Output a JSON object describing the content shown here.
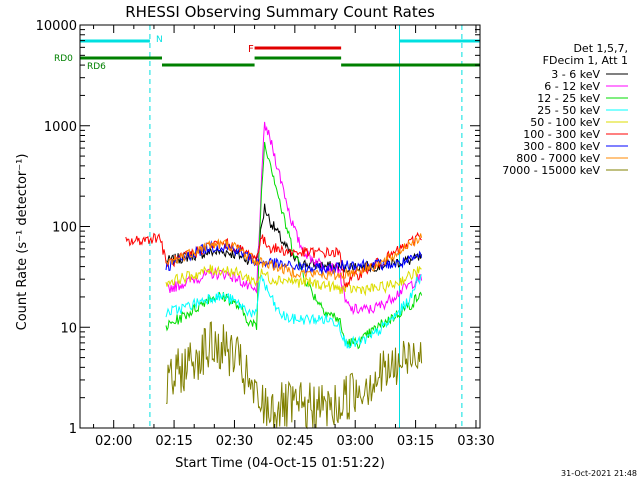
{
  "chart_data": {
    "type": "line",
    "title": "RHESSI Observing Summary Count Rates",
    "xlabel": "Start Time (04-Oct-15 01:51:22)",
    "ylabel": "Count Rate (s⁻¹ detector⁻¹)",
    "y_scale": "log",
    "ylim": [
      1,
      10000
    ],
    "xlim_minutes_after_0200": [
      -8.37,
      91.0
    ],
    "y_ticks": [
      1,
      10,
      100,
      1000,
      10000
    ],
    "y_tick_labels": [
      "1",
      "10",
      "100",
      "1000",
      "10000"
    ],
    "x_ticks": [
      "02:00",
      "02:15",
      "02:30",
      "02:45",
      "03:00",
      "03:15",
      "03:30"
    ],
    "x_tick_minutes": [
      0,
      15,
      30,
      45,
      60,
      75,
      90
    ],
    "grid": false,
    "legend_placement": "right",
    "legend_header": [
      "Det 1,5,7,",
      "FDecim 1, Att 1"
    ],
    "timestamp": "31-Oct-2021 21:48",
    "status_flags": {
      "night": {
        "label": "N",
        "color": "#00e0e0",
        "intervals": [
          [
            -8.37,
            9.0
          ],
          [
            71.0,
            91.0
          ]
        ]
      },
      "flare": {
        "label": "F",
        "color": "#e00000",
        "intervals": [
          [
            35.0,
            56.5
          ]
        ]
      },
      "rd0": {
        "label": "RD0",
        "color": "#008000",
        "intervals": [
          [
            -8.37,
            12.0
          ],
          [
            35.0,
            56.5
          ]
        ]
      },
      "rd6": {
        "label": "RD6",
        "color": "#008000",
        "intervals": [
          [
            12.0,
            35.0
          ],
          [
            56.5,
            91.0
          ]
        ]
      }
    },
    "boundaries": {
      "solid_cyan_minutes": [
        -8.37,
        71.0
      ],
      "dashed_cyan_minutes": [
        9.0,
        86.5
      ]
    },
    "x_minutes": [
      0.5,
      3,
      6,
      9,
      11.5,
      13,
      16,
      20,
      24,
      28,
      31,
      34,
      35.5,
      36.5,
      37.5,
      39,
      40.5,
      42,
      44,
      46,
      48,
      50,
      53,
      56,
      57.5,
      59,
      61,
      64,
      67,
      70,
      72,
      74,
      75.5,
      76.5
    ],
    "series": [
      {
        "name": "3 - 6 keV",
        "color": "#000000",
        "values": [
          null,
          null,
          null,
          null,
          null,
          45,
          48,
          52,
          56,
          56,
          52,
          46,
          45,
          85,
          155,
          110,
          90,
          70,
          52,
          44,
          42,
          42,
          40,
          40,
          38,
          40,
          40,
          40,
          42,
          44,
          45,
          46,
          48,
          48
        ]
      },
      {
        "name": "6 - 12 keV",
        "color": "#ff00ff",
        "values": [
          null,
          null,
          null,
          null,
          null,
          24,
          26,
          30,
          34,
          34,
          30,
          24,
          22,
          180,
          1050,
          700,
          420,
          250,
          120,
          70,
          52,
          46,
          40,
          38,
          18,
          15,
          15,
          15,
          17,
          21,
          24,
          27,
          30,
          30
        ]
      },
      {
        "name": "12 - 25 keV",
        "color": "#00dd00",
        "values": [
          null,
          null,
          null,
          null,
          null,
          10,
          12,
          15,
          20,
          20,
          16,
          11,
          10,
          150,
          680,
          420,
          240,
          130,
          70,
          42,
          28,
          20,
          14,
          12,
          7,
          7,
          7,
          9,
          11,
          13,
          15,
          17,
          20,
          20
        ]
      },
      {
        "name": "25 - 50 keV",
        "color": "#00ffff",
        "values": [
          null,
          null,
          null,
          null,
          null,
          14,
          15,
          17,
          20,
          20,
          17,
          14,
          13,
          35,
          26,
          20,
          15,
          13,
          12,
          12,
          12,
          12,
          12,
          11,
          7,
          7,
          7,
          8,
          10,
          13,
          16,
          20,
          32,
          30
        ]
      },
      {
        "name": "50 - 100 keV",
        "color": "#dddd00",
        "values": [
          null,
          null,
          null,
          null,
          null,
          28,
          30,
          33,
          37,
          37,
          34,
          30,
          28,
          34,
          34,
          30,
          30,
          30,
          29,
          28,
          28,
          27,
          26,
          24,
          24,
          24,
          24,
          24,
          25,
          27,
          30,
          33,
          36,
          36
        ]
      },
      {
        "name": "100 - 300 keV",
        "color": "#ff0000",
        "values": [
          null,
          70,
          72,
          76,
          80,
          43,
          47,
          55,
          65,
          67,
          60,
          52,
          48,
          78,
          70,
          62,
          60,
          58,
          56,
          55,
          55,
          55,
          55,
          55,
          27,
          30,
          34,
          40,
          46,
          55,
          62,
          70,
          82,
          80
        ]
      },
      {
        "name": "300 - 800 keV",
        "color": "#0000ff",
        "values": [
          null,
          null,
          null,
          null,
          null,
          40,
          45,
          55,
          63,
          63,
          58,
          48,
          44,
          44,
          44,
          44,
          42,
          42,
          40,
          40,
          38,
          38,
          38,
          40,
          42,
          42,
          42,
          42,
          42,
          42,
          44,
          46,
          50,
          50
        ]
      },
      {
        "name": "800 - 7000 keV",
        "color": "#ff8800",
        "values": [
          null,
          null,
          null,
          null,
          null,
          43,
          48,
          57,
          66,
          67,
          60,
          50,
          44,
          44,
          44,
          42,
          40,
          38,
          36,
          35,
          34,
          34,
          33,
          33,
          34,
          35,
          37,
          40,
          44,
          52,
          62,
          70,
          76,
          75
        ]
      },
      {
        "name": "7000 - 15000 keV",
        "color": "#808000",
        "values": [
          null,
          null,
          null,
          null,
          null,
          2.5,
          3.5,
          5,
          6.5,
          6,
          4.5,
          2.5,
          1.8,
          1.8,
          1.6,
          1.6,
          1.6,
          1.6,
          1.6,
          1.6,
          1.6,
          1.6,
          1.6,
          1.6,
          2,
          2.2,
          2.5,
          3,
          3.5,
          4,
          4.5,
          5.5,
          6.5,
          6
        ]
      }
    ]
  }
}
